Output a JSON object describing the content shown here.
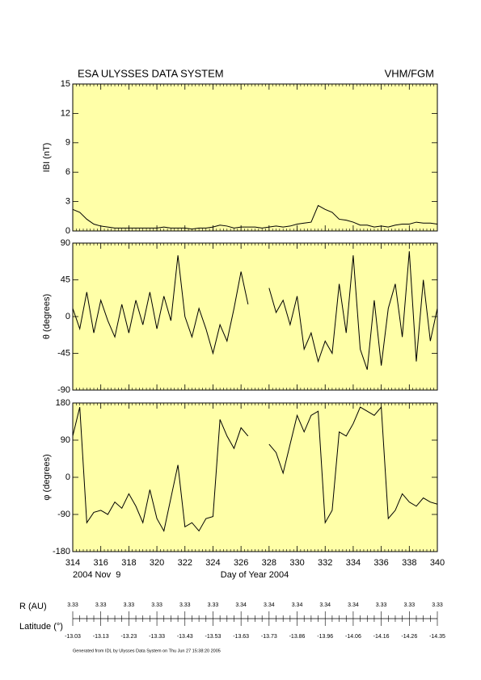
{
  "header": {
    "title": "ESA ULYSSES DATA SYSTEM",
    "instrument": "VHM/FGM"
  },
  "chart_data": [
    {
      "type": "line",
      "ylabel": "IBI (nT)",
      "color": "#000000",
      "x": [
        314,
        314.5,
        315,
        315.5,
        316,
        316.5,
        317,
        317.5,
        318,
        318.5,
        319,
        319.5,
        320,
        320.5,
        321,
        321.5,
        322,
        322.5,
        323,
        323.5,
        324,
        324.5,
        325,
        325.5,
        326,
        326.5,
        327,
        327.5,
        328,
        328.5,
        329,
        329.5,
        330,
        330.5,
        331,
        331.5,
        332,
        332.5,
        333,
        333.5,
        334,
        334.5,
        335,
        335.5,
        336,
        336.5,
        337,
        337.5,
        338,
        338.5,
        339,
        339.5,
        340
      ],
      "values": [
        2.2,
        1.9,
        1.2,
        0.7,
        0.5,
        0.4,
        0.3,
        0.3,
        0.3,
        0.3,
        0.3,
        0.3,
        0.3,
        0.4,
        0.3,
        0.3,
        0.3,
        0.2,
        0.3,
        0.3,
        0.4,
        0.6,
        0.5,
        0.3,
        0.4,
        0.4,
        0.4,
        0.3,
        0.4,
        0.5,
        0.4,
        0.5,
        0.7,
        0.8,
        0.9,
        2.6,
        2.2,
        1.9,
        1.2,
        1.1,
        0.9,
        0.6,
        0.6,
        0.4,
        0.5,
        0.4,
        0.6,
        0.7,
        0.7,
        0.9,
        0.8,
        0.8,
        0.7
      ],
      "xlim": [
        314,
        340
      ],
      "xticks": [
        314,
        316,
        318,
        320,
        322,
        324,
        326,
        328,
        330,
        332,
        334,
        336,
        338,
        340
      ],
      "ylim": [
        0,
        15
      ],
      "yticks": [
        0,
        3,
        6,
        9,
        12,
        15
      ]
    },
    {
      "type": "line",
      "ylabel": "θ (degrees)",
      "color": "#000000",
      "x": [
        314,
        314.5,
        315,
        315.5,
        316,
        316.5,
        317,
        317.5,
        318,
        318.5,
        319,
        319.5,
        320,
        320.5,
        321,
        321.5,
        322,
        322.5,
        323,
        323.5,
        324,
        324.5,
        325,
        325.5,
        326,
        326.5,
        327,
        327.5,
        328,
        328.5,
        329,
        329.5,
        330,
        330.5,
        331,
        331.5,
        332,
        332.5,
        333,
        333.5,
        334,
        334.5,
        335,
        335.5,
        336,
        336.5,
        337,
        337.5,
        338,
        338.5,
        339,
        339.5,
        340
      ],
      "values": [
        10,
        -15,
        30,
        -20,
        20,
        -5,
        -25,
        15,
        -20,
        20,
        -10,
        30,
        -15,
        25,
        -5,
        75,
        0,
        -25,
        10,
        -15,
        -45,
        -10,
        -30,
        10,
        55,
        15,
        null,
        null,
        35,
        5,
        20,
        -10,
        25,
        -40,
        -20,
        -55,
        -30,
        -45,
        40,
        -20,
        75,
        -40,
        -65,
        20,
        -60,
        10,
        40,
        -25,
        80,
        -55,
        45,
        -30,
        10
      ],
      "xlim": [
        314,
        340
      ],
      "xticks": [
        314,
        316,
        318,
        320,
        322,
        324,
        326,
        328,
        330,
        332,
        334,
        336,
        338,
        340
      ],
      "ylim": [
        -90,
        90
      ],
      "yticks": [
        -90,
        -45,
        0,
        45,
        90
      ]
    },
    {
      "type": "line",
      "ylabel": "φ (degrees)",
      "color": "#000000",
      "x": [
        314,
        314.5,
        315,
        315.5,
        316,
        316.5,
        317,
        317.5,
        318,
        318.5,
        319,
        319.5,
        320,
        320.5,
        321,
        321.5,
        322,
        322.5,
        323,
        323.5,
        324,
        324.5,
        325,
        325.5,
        326,
        326.5,
        327,
        327.5,
        328,
        328.5,
        329,
        329.5,
        330,
        330.5,
        331,
        331.5,
        332,
        332.5,
        333,
        333.5,
        334,
        334.5,
        335,
        335.5,
        336,
        336.5,
        337,
        337.5,
        338,
        338.5,
        339,
        339.5,
        340
      ],
      "values": [
        100,
        170,
        -110,
        -85,
        -80,
        -90,
        -60,
        -75,
        -40,
        -70,
        -110,
        -30,
        -100,
        -130,
        -50,
        30,
        -120,
        -110,
        -130,
        -100,
        -95,
        140,
        100,
        70,
        120,
        100,
        null,
        null,
        80,
        60,
        10,
        80,
        150,
        110,
        150,
        160,
        -110,
        -80,
        110,
        100,
        130,
        170,
        160,
        150,
        170,
        -100,
        -80,
        -40,
        -60,
        -70,
        -50,
        -60,
        -65
      ],
      "xlim": [
        314,
        340
      ],
      "xticks": [
        314,
        316,
        318,
        320,
        322,
        324,
        326,
        328,
        330,
        332,
        334,
        336,
        338,
        340
      ],
      "ylim": [
        -180,
        180
      ],
      "yticks": [
        -180,
        -90,
        0,
        90,
        180
      ],
      "xlabel": "Day of Year 2004",
      "date_label": "2004 Nov  9"
    }
  ],
  "ephemeris": {
    "r_label": "R (AU)",
    "latitude_label": "Latitude (°)",
    "r": [
      3.33,
      3.33,
      3.33,
      3.33,
      3.33,
      3.33,
      3.34,
      3.34,
      3.34,
      3.34,
      3.34,
      3.33,
      3.33,
      3.33
    ],
    "latitude": [
      -13.03,
      -13.13,
      -13.23,
      -13.33,
      -13.43,
      -13.53,
      -13.63,
      -13.73,
      -13.86,
      -13.96,
      -14.06,
      -14.16,
      -14.26,
      -14.35
    ]
  },
  "footer": "Generated from IDL by Ulysses Data System on Thu Jun 27 15:38:20 2005"
}
